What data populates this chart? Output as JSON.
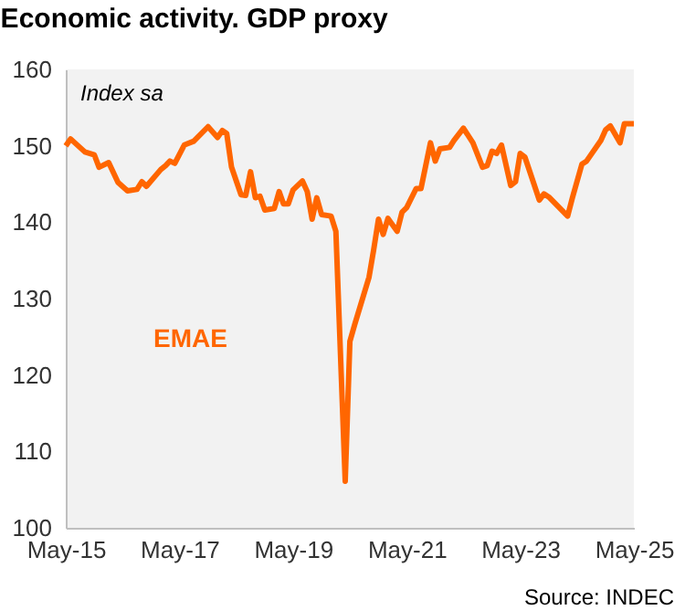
{
  "chart_data": {
    "type": "line",
    "title": "Economic activity. GDP proxy",
    "annotations": [
      "Index sa",
      "Source: INDEC"
    ],
    "xlim": [
      "2015-05",
      "2025-05"
    ],
    "xticks": [
      {
        "value": "2015-05",
        "label": "May-15"
      },
      {
        "value": "2017-05",
        "label": "May-17"
      },
      {
        "value": "2019-05",
        "label": "May-19"
      },
      {
        "value": "2021-05",
        "label": "May-21"
      },
      {
        "value": "2023-05",
        "label": "May-23"
      },
      {
        "value": "2025-05",
        "label": "May-25"
      }
    ],
    "ylim": [
      100,
      160
    ],
    "yticks": [
      100,
      110,
      120,
      130,
      140,
      150,
      160
    ],
    "grid": false,
    "series": [
      {
        "name": "EMAE",
        "color": "#ff6600",
        "x": [
          "2015-05",
          "2015-06",
          "2015-09",
          "2015-11",
          "2015-12",
          "2016-02",
          "2016-04",
          "2016-06",
          "2016-08",
          "2016-09",
          "2016-10",
          "2017-01",
          "2017-02",
          "2017-03",
          "2017-04",
          "2017-06",
          "2017-08",
          "2017-11",
          "2018-01",
          "2018-02",
          "2018-03",
          "2018-04",
          "2018-06",
          "2018-07",
          "2018-08",
          "2018-09",
          "2018-10",
          "2018-11",
          "2019-01",
          "2019-02",
          "2019-03",
          "2019-04",
          "2019-05",
          "2019-07",
          "2019-08",
          "2019-09",
          "2019-10",
          "2019-11",
          "2020-01",
          "2020-02",
          "2020-04",
          "2020-05",
          "2020-06",
          "2020-09",
          "2020-10",
          "2020-11",
          "2020-12",
          "2021-01",
          "2021-03",
          "2021-04",
          "2021-05",
          "2021-07",
          "2021-08",
          "2021-10",
          "2021-11",
          "2021-12",
          "2022-02",
          "2022-03",
          "2022-05",
          "2022-07",
          "2022-09",
          "2022-10",
          "2022-11",
          "2022-12",
          "2023-01",
          "2023-03",
          "2023-04",
          "2023-05",
          "2023-06",
          "2023-09",
          "2023-10",
          "2023-11",
          "2024-03",
          "2024-04",
          "2024-06",
          "2024-07",
          "2024-10",
          "2024-11",
          "2024-12",
          "2025-02",
          "2025-03",
          "2025-05"
        ],
        "values": [
          150.0,
          150.9,
          149.2,
          148.8,
          147.2,
          147.8,
          145.2,
          144.1,
          144.3,
          145.3,
          144.7,
          146.9,
          147.4,
          148.0,
          147.7,
          150.1,
          150.6,
          152.5,
          151.1,
          152.0,
          151.6,
          147.2,
          143.6,
          143.5,
          146.6,
          143.2,
          143.4,
          141.6,
          141.8,
          144.0,
          142.4,
          142.4,
          144.2,
          145.4,
          144.0,
          140.4,
          143.2,
          141.0,
          140.8,
          138.8,
          106.1,
          124.4,
          126.6,
          132.8,
          136.4,
          140.4,
          138.4,
          140.5,
          138.8,
          141.3,
          141.9,
          144.4,
          144.4,
          150.4,
          148.0,
          149.6,
          149.8,
          150.7,
          152.3,
          150.4,
          147.2,
          147.4,
          149.3,
          149.0,
          150.1,
          144.8,
          145.3,
          149.0,
          148.5,
          142.9,
          143.7,
          143.3,
          140.8,
          143.2,
          147.6,
          148.0,
          150.7,
          152.1,
          152.6,
          150.4,
          152.9,
          152.9
        ]
      }
    ]
  }
}
